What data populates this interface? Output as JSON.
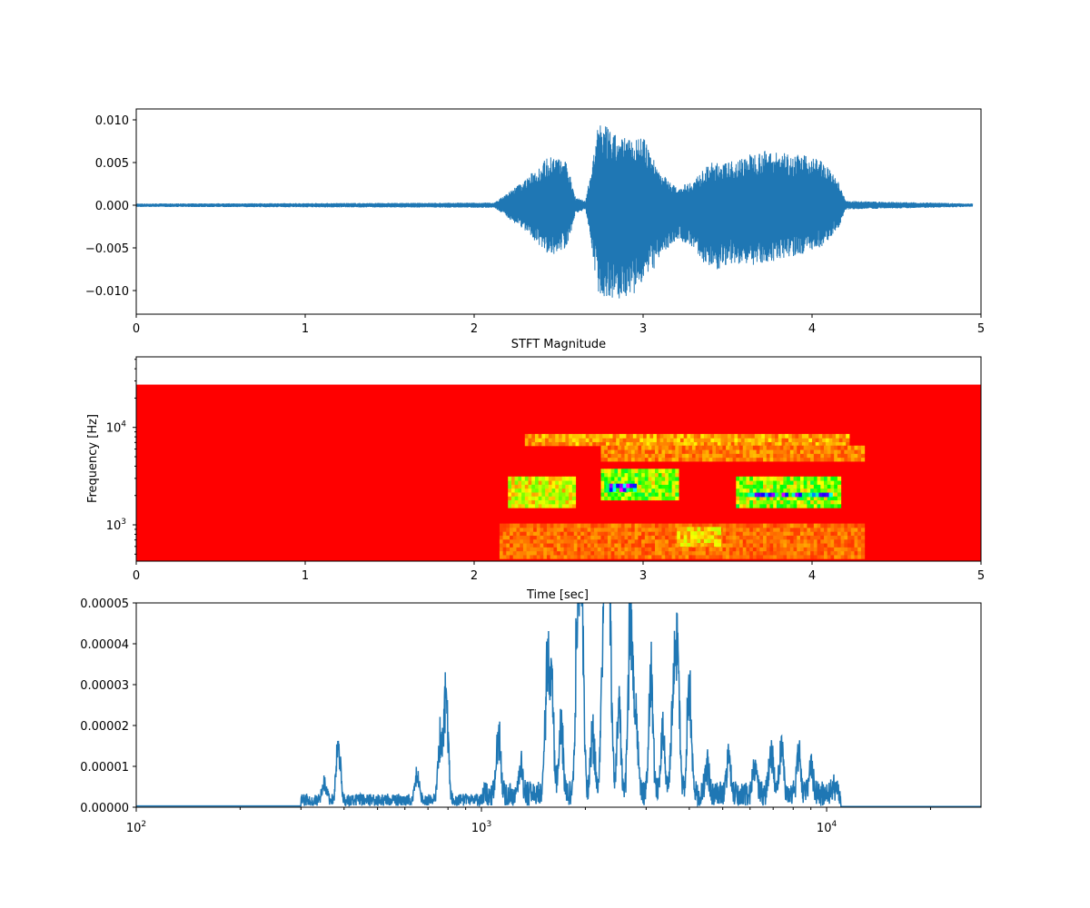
{
  "chart_data": [
    {
      "type": "line",
      "title": "",
      "xlabel": "",
      "ylabel": "",
      "xlim": [
        0,
        5
      ],
      "ylim": [
        -0.0125,
        0.0112
      ],
      "xticks": [
        "0",
        "1",
        "2",
        "3",
        "4",
        "5"
      ],
      "yticks": [
        "0.010",
        "0.005",
        "0.000",
        "−0.005",
        "−0.010"
      ],
      "color": "#1f77b4",
      "envelope": {
        "t": [
          0,
          2.12,
          2.3,
          2.45,
          2.55,
          2.6,
          2.66,
          2.74,
          2.85,
          3.0,
          3.1,
          3.2,
          3.3,
          3.4,
          3.5,
          3.7,
          3.9,
          4.05,
          4.15,
          4.2,
          4.95
        ],
        "upper": [
          0.0002,
          0.0003,
          0.003,
          0.006,
          0.005,
          0.001,
          0.0005,
          0.01,
          0.008,
          0.008,
          0.004,
          0.002,
          0.003,
          0.005,
          0.005,
          0.0065,
          0.006,
          0.0055,
          0.003,
          0.0005,
          0.0002
        ],
        "lower": [
          -0.0002,
          -0.0003,
          -0.003,
          -0.006,
          -0.005,
          -0.001,
          -0.0005,
          -0.011,
          -0.011,
          -0.01,
          -0.006,
          -0.004,
          -0.005,
          -0.008,
          -0.007,
          -0.007,
          -0.006,
          -0.005,
          -0.003,
          -0.0005,
          -0.0002
        ]
      }
    },
    {
      "type": "heatmap",
      "title": "STFT Magnitude",
      "xlabel": "Time [sec]",
      "ylabel": "Frequency [Hz]",
      "xlim": [
        0,
        5
      ],
      "ylim": [
        424,
        53000
      ],
      "yscale": "log",
      "xticks": [
        "0",
        "1",
        "2",
        "3",
        "4",
        "5"
      ],
      "yticks": [
        {
          "base": "10",
          "exp": "3"
        },
        {
          "base": "10",
          "exp": "4"
        }
      ],
      "max_frequency": 27500,
      "colormap": "hsv",
      "regions": [
        {
          "t": [
            2.15,
            4.3
          ],
          "f": [
            450,
            1000
          ],
          "level": 0.1
        },
        {
          "t": [
            3.2,
            3.45
          ],
          "f": [
            600,
            900
          ],
          "level": 0.2
        },
        {
          "t": [
            2.2,
            2.6
          ],
          "f": [
            1500,
            3000
          ],
          "level": 0.25
        },
        {
          "t": [
            2.75,
            3.2
          ],
          "f": [
            1800,
            3600
          ],
          "level": 0.35
        },
        {
          "t": [
            2.78,
            2.95
          ],
          "f": [
            2200,
            2500
          ],
          "level": 0.8
        },
        {
          "t": [
            3.55,
            4.15
          ],
          "f": [
            1500,
            3000
          ],
          "level": 0.35
        },
        {
          "t": [
            3.6,
            4.1
          ],
          "f": [
            1950,
            2100
          ],
          "level": 0.75
        },
        {
          "t": [
            2.3,
            4.2
          ],
          "f": [
            6500,
            8000
          ],
          "level": 0.15
        },
        {
          "t": [
            2.75,
            4.3
          ],
          "f": [
            4500,
            6000
          ],
          "level": 0.12
        }
      ]
    },
    {
      "type": "line",
      "title": "",
      "xlabel": "",
      "ylabel": "",
      "xscale": "log",
      "xlim": [
        100,
        28000
      ],
      "ylim": [
        0,
        5e-05
      ],
      "xticks": [
        {
          "base": "10",
          "exp": "2"
        },
        {
          "base": "10",
          "exp": "3"
        },
        {
          "base": "10",
          "exp": "4"
        }
      ],
      "yticks": [
        "0.00000",
        "0.00001",
        "0.00002",
        "0.00003",
        "0.00004",
        "0.00005"
      ],
      "color": "#1f77b4",
      "peaks": [
        [
          350,
          6e-06
        ],
        [
          385,
          1.8e-05
        ],
        [
          650,
          8e-06
        ],
        [
          760,
          2.1e-05
        ],
        [
          790,
          3.4e-05
        ],
        [
          1120,
          1.9e-05
        ],
        [
          1300,
          9e-06
        ],
        [
          1550,
          4.1e-05
        ],
        [
          1600,
          3e-05
        ],
        [
          1700,
          2.2e-05
        ],
        [
          1900,
          6e-05
        ],
        [
          1950,
          6e-05
        ],
        [
          2100,
          2e-05
        ],
        [
          2250,
          4e-05
        ],
        [
          2300,
          6e-05
        ],
        [
          2350,
          6e-05
        ],
        [
          2500,
          2.5e-05
        ],
        [
          2700,
          6e-05
        ],
        [
          2800,
          2.6e-05
        ],
        [
          3100,
          3.6e-05
        ],
        [
          3350,
          1.8e-05
        ],
        [
          3600,
          3.4e-05
        ],
        [
          3700,
          4.1e-05
        ],
        [
          4000,
          3.5e-05
        ],
        [
          4500,
          1e-05
        ],
        [
          5200,
          1.2e-05
        ],
        [
          6200,
          1e-05
        ],
        [
          6900,
          1.6e-05
        ],
        [
          7400,
          1.6e-05
        ],
        [
          8300,
          1.3e-05
        ],
        [
          9000,
          9e-06
        ],
        [
          10500,
          2e-06
        ]
      ]
    }
  ]
}
